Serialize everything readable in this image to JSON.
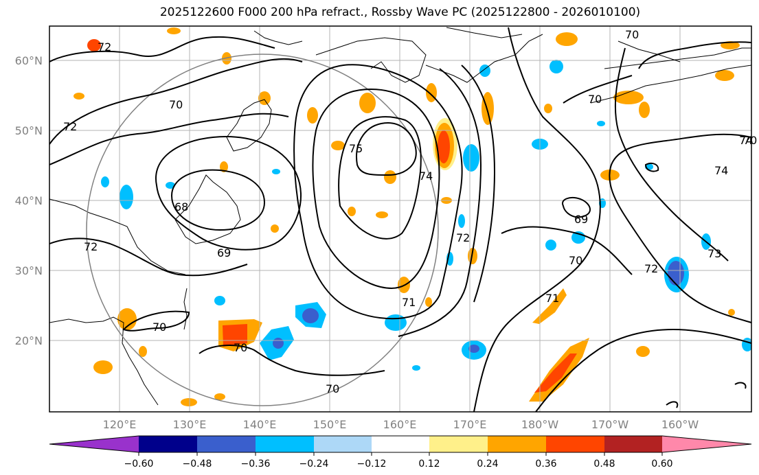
{
  "title": "2025122600 F000 200 hPa refract., Rossby Wave PC (2025122800 - 2026010100)",
  "lat_labels": [
    "60°N",
    "50°N",
    "40°N",
    "30°N",
    "20°N"
  ],
  "lon_labels": [
    "120°E",
    "130°E",
    "140°E",
    "150°E",
    "160°E",
    "170°E",
    "180°W",
    "170°W",
    "160°W"
  ],
  "contour_labels": [
    "72",
    "70",
    "72",
    "68",
    "72",
    "69",
    "75",
    "74",
    "72",
    "71",
    "70",
    "70",
    "70",
    "70",
    "69",
    "70",
    "71",
    "72",
    "73",
    "74",
    "74",
    "70",
    "70"
  ],
  "colorbar": {
    "ticks": [
      "−0.60",
      "−0.48",
      "−0.36",
      "−0.24",
      "−0.12",
      "0.12",
      "0.24",
      "0.36",
      "0.48",
      "0.60"
    ],
    "colors": [
      "#9932cc",
      "#00008b",
      "#3a5fcd",
      "#00bfff",
      "#add8f7",
      "#ffffff",
      "#fff08a",
      "#ffa500",
      "#ff4500",
      "#b22222",
      "#ff88aa"
    ]
  },
  "shading_colors": {
    "orange": "#ffa500",
    "red_orange": "#ff4500",
    "light_yellow": "#fff08a",
    "deep_sky_blue": "#00bfff",
    "royal_blue": "#3a5fcd",
    "light_blue": "#add8f7"
  }
}
